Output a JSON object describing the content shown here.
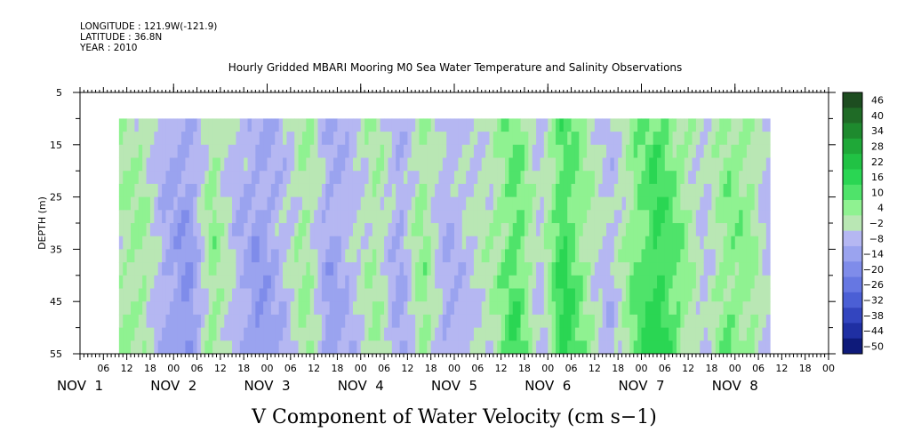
{
  "header": {
    "longitude": "LONGITUDE : 121.9W(-121.9)",
    "latitude": "LATITUDE : 36.8N",
    "year": "YEAR : 2010"
  },
  "chart_data": {
    "type": "heatmap",
    "title": "Hourly Gridded MBARI Mooring M0 Sea Water Temperature and Salinity Observations",
    "xlabel": "V Component of Water Velocity (cm s−1)",
    "ylabel": "DEPTH (m)",
    "ylim": [
      55,
      5
    ],
    "y_ticks": [
      5,
      15,
      25,
      35,
      45,
      55
    ],
    "x_hour_ticks": [
      "06",
      "12",
      "18",
      "00",
      "06",
      "12",
      "18",
      "00",
      "06",
      "12",
      "18",
      "00",
      "06",
      "12",
      "18",
      "00",
      "06",
      "12",
      "18",
      "00",
      "06",
      "12",
      "18",
      "00",
      "06",
      "12",
      "18",
      "00",
      "06",
      "12",
      "18",
      "00"
    ],
    "x_day_labels": [
      "NOV  1",
      "NOV  2",
      "NOV  3",
      "NOV  4",
      "NOV  5",
      "NOV  6",
      "NOV  7",
      "NOV  8"
    ],
    "data_depth_range": [
      10,
      55
    ],
    "data_time_range_hours": [
      10,
      177
    ],
    "colorbar": {
      "labels": [
        "46",
        "40",
        "34",
        "28",
        "22",
        "16",
        "10",
        "4",
        "−2",
        "−8",
        "−14",
        "−20",
        "−26",
        "−32",
        "−38",
        "−44",
        "−50"
      ],
      "levels": [
        46,
        40,
        34,
        28,
        22,
        16,
        10,
        4,
        -2,
        -8,
        -14,
        -20,
        -26,
        -32,
        -38,
        -44,
        -50
      ],
      "colors": [
        "#1d4d20",
        "#1f6b26",
        "#1e8a2e",
        "#1fa838",
        "#21c244",
        "#2ad653",
        "#4fe36a",
        "#8ff291",
        "#b9e7b4",
        "#b5b7f2",
        "#9aa3ef",
        "#7f8cea",
        "#6677e2",
        "#4b5fd5",
        "#3345bf",
        "#1f2fa3",
        "#0e1a7a"
      ]
    },
    "column_means_cm_s": [
      {
        "hour": 10,
        "mean": 2
      },
      {
        "hour": 16,
        "mean": 3
      },
      {
        "hour": 22,
        "mean": -6
      },
      {
        "hour": 28,
        "mean": -10
      },
      {
        "hour": 34,
        "mean": 5
      },
      {
        "hour": 40,
        "mean": -4
      },
      {
        "hour": 46,
        "mean": -9
      },
      {
        "hour": 52,
        "mean": -4
      },
      {
        "hour": 58,
        "mean": 4
      },
      {
        "hour": 64,
        "mean": -8
      },
      {
        "hour": 70,
        "mean": -3
      },
      {
        "hour": 76,
        "mean": 3
      },
      {
        "hour": 82,
        "mean": -7
      },
      {
        "hour": 88,
        "mean": 5
      },
      {
        "hour": 94,
        "mean": -6
      },
      {
        "hour": 100,
        "mean": -2
      },
      {
        "hour": 106,
        "mean": 2
      },
      {
        "hour": 112,
        "mean": 10
      },
      {
        "hour": 118,
        "mean": -3
      },
      {
        "hour": 124,
        "mean": 13
      },
      {
        "hour": 130,
        "mean": 3
      },
      {
        "hour": 136,
        "mean": -4
      },
      {
        "hour": 142,
        "mean": 6
      },
      {
        "hour": 148,
        "mean": 13
      },
      {
        "hour": 154,
        "mean": 6
      },
      {
        "hour": 160,
        "mean": -3
      },
      {
        "hour": 166,
        "mean": 6
      },
      {
        "hour": 172,
        "mean": 4
      },
      {
        "hour": 177,
        "mean": -4
      }
    ]
  }
}
